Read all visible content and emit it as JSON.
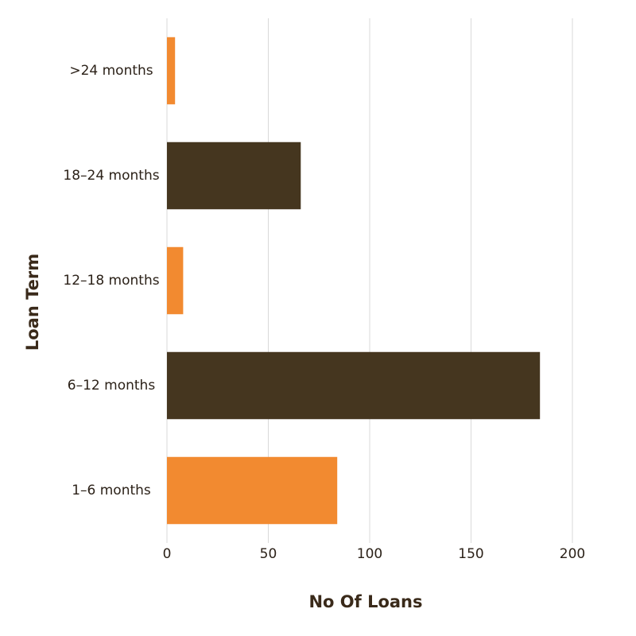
{
  "chart_data": {
    "type": "barh",
    "categories": [
      ">24 months",
      "18–24 months",
      "12–18 months",
      "6–12 months",
      "1–6 months"
    ],
    "values": [
      4,
      66,
      8,
      184,
      84
    ],
    "colors": [
      "#f28a30",
      "#45361f",
      "#f28a30",
      "#45361f",
      "#f28a30"
    ],
    "xlim": [
      0,
      200
    ],
    "xticks": [
      0,
      50,
      100,
      150,
      200
    ],
    "grid": true,
    "xlabel": "No Of Loans",
    "ylabel": "Loan Term"
  }
}
